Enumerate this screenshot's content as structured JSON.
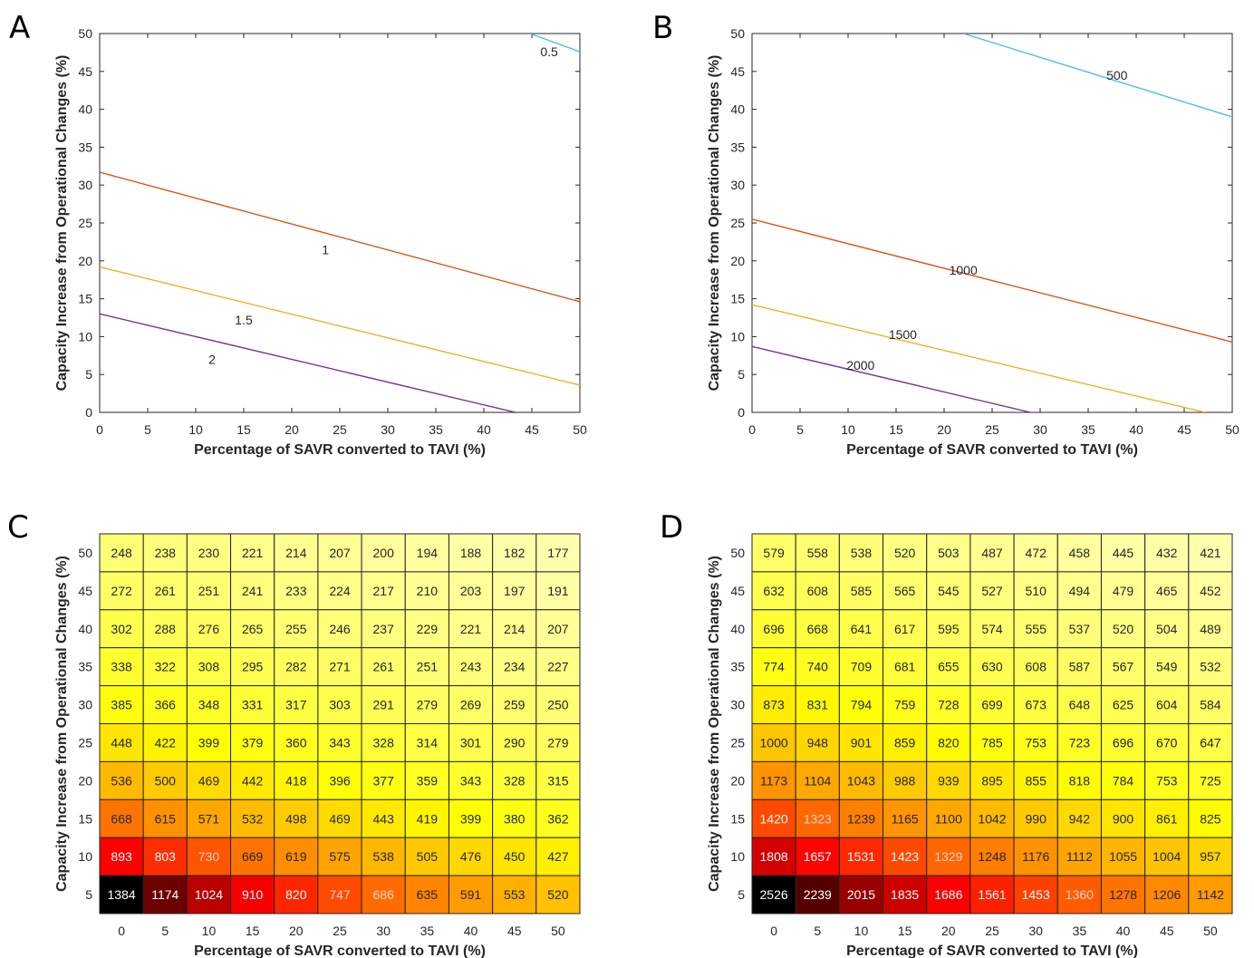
{
  "figure": {
    "panels": [
      {
        "id": "A",
        "letter": "A"
      },
      {
        "id": "B",
        "letter": "B"
      },
      {
        "id": "C",
        "letter": "C"
      },
      {
        "id": "D",
        "letter": "D"
      }
    ]
  },
  "chart_data": [
    {
      "panel": "A",
      "type": "line",
      "xlabel": "Percentage of SAVR converted to TAVI (%)",
      "ylabel": "Capacity Increase from Operational Changes (%)",
      "xlim": [
        0,
        50
      ],
      "ylim": [
        0,
        50
      ],
      "xticks": [
        0,
        5,
        10,
        15,
        20,
        25,
        30,
        35,
        40,
        45,
        50
      ],
      "yticks": [
        0,
        5,
        10,
        15,
        20,
        25,
        30,
        35,
        40,
        45,
        50
      ],
      "grid": false,
      "series": [
        {
          "contour_label": "0.5",
          "color": "#4dbeee",
          "points": [
            [
              44.8,
              50
            ],
            [
              50,
              47.6
            ]
          ],
          "label_at": [
            46.8,
            47.6
          ]
        },
        {
          "contour_label": "1",
          "color": "#d95319",
          "points": [
            [
              0,
              31.7
            ],
            [
              50,
              14.6
            ]
          ],
          "label_at": [
            23.5,
            21.5
          ]
        },
        {
          "contour_label": "1.5",
          "color": "#edb120",
          "points": [
            [
              0,
              19.2
            ],
            [
              50,
              3.6
            ]
          ],
          "label_at": [
            15.0,
            12.2
          ]
        },
        {
          "contour_label": "2",
          "color": "#7e2f8e",
          "points": [
            [
              0,
              13.0
            ],
            [
              43.3,
              0
            ]
          ],
          "label_at": [
            11.7,
            7.0
          ]
        }
      ]
    },
    {
      "panel": "B",
      "type": "line",
      "xlabel": "Percentage of SAVR converted to TAVI (%)",
      "ylabel": "Capacity Increase from Operational Changes (%)",
      "xlim": [
        0,
        50
      ],
      "ylim": [
        0,
        50
      ],
      "xticks": [
        0,
        5,
        10,
        15,
        20,
        25,
        30,
        35,
        40,
        45,
        50
      ],
      "yticks": [
        0,
        5,
        10,
        15,
        20,
        25,
        30,
        35,
        40,
        45,
        50
      ],
      "grid": false,
      "series": [
        {
          "contour_label": "500",
          "color": "#4dbeee",
          "points": [
            [
              22,
              50
            ],
            [
              50,
              39.0
            ]
          ],
          "label_at": [
            38.0,
            44.5
          ]
        },
        {
          "contour_label": "1000",
          "color": "#d95319",
          "points": [
            [
              0,
              25.5
            ],
            [
              50,
              9.3
            ]
          ],
          "label_at": [
            22.0,
            18.8
          ]
        },
        {
          "contour_label": "1500",
          "color": "#edb120",
          "points": [
            [
              0,
              14.2
            ],
            [
              47.2,
              0
            ]
          ],
          "label_at": [
            15.7,
            10.3
          ]
        },
        {
          "contour_label": "2000",
          "color": "#7e2f8e",
          "points": [
            [
              0,
              8.7
            ],
            [
              29.0,
              0
            ]
          ],
          "label_at": [
            11.3,
            6.2
          ]
        }
      ]
    },
    {
      "panel": "C",
      "type": "heatmap",
      "xlabel": "Percentage of SAVR converted to TAVI (%)",
      "ylabel": "Capacity Increase from Operational Changes (%)",
      "x": [
        "0",
        "5",
        "10",
        "15",
        "20",
        "25",
        "30",
        "35",
        "40",
        "45",
        "50"
      ],
      "y": [
        "50",
        "45",
        "40",
        "35",
        "30",
        "25",
        "20",
        "15",
        "10",
        "5"
      ],
      "values": [
        [
          248,
          238,
          230,
          221,
          214,
          207,
          200,
          194,
          188,
          182,
          177
        ],
        [
          272,
          261,
          251,
          241,
          233,
          224,
          217,
          210,
          203,
          197,
          191
        ],
        [
          302,
          288,
          276,
          265,
          255,
          246,
          237,
          229,
          221,
          214,
          207
        ],
        [
          338,
          322,
          308,
          295,
          282,
          271,
          261,
          251,
          243,
          234,
          227
        ],
        [
          385,
          366,
          348,
          331,
          317,
          303,
          291,
          279,
          269,
          259,
          250
        ],
        [
          448,
          422,
          399,
          379,
          360,
          343,
          328,
          314,
          301,
          290,
          279
        ],
        [
          536,
          500,
          469,
          442,
          418,
          396,
          377,
          359,
          343,
          328,
          315
        ],
        [
          668,
          615,
          571,
          532,
          498,
          469,
          443,
          419,
          399,
          380,
          362
        ],
        [
          893,
          803,
          730,
          669,
          619,
          575,
          538,
          505,
          476,
          450,
          427
        ],
        [
          1384,
          1174,
          1024,
          910,
          820,
          747,
          686,
          635,
          591,
          553,
          520
        ]
      ],
      "colormap": "hot (reversed)"
    },
    {
      "panel": "D",
      "type": "heatmap",
      "xlabel": "Percentage of SAVR converted to TAVI (%)",
      "ylabel": "Capacity Increase from Operational Changes (%)",
      "x": [
        "0",
        "5",
        "10",
        "15",
        "20",
        "25",
        "30",
        "35",
        "40",
        "45",
        "50"
      ],
      "y": [
        "50",
        "45",
        "40",
        "35",
        "30",
        "25",
        "20",
        "15",
        "10",
        "5"
      ],
      "values": [
        [
          579,
          558,
          538,
          520,
          503,
          487,
          472,
          458,
          445,
          432,
          421
        ],
        [
          632,
          608,
          585,
          565,
          545,
          527,
          510,
          494,
          479,
          465,
          452
        ],
        [
          696,
          668,
          641,
          617,
          595,
          574,
          555,
          537,
          520,
          504,
          489
        ],
        [
          774,
          740,
          709,
          681,
          655,
          630,
          608,
          587,
          567,
          549,
          532
        ],
        [
          873,
          831,
          794,
          759,
          728,
          699,
          673,
          648,
          625,
          604,
          584
        ],
        [
          1000,
          948,
          901,
          859,
          820,
          785,
          753,
          723,
          696,
          670,
          647
        ],
        [
          1173,
          1104,
          1043,
          988,
          939,
          895,
          855,
          818,
          784,
          753,
          725
        ],
        [
          1420,
          1323,
          1239,
          1165,
          1100,
          1042,
          990,
          942,
          900,
          861,
          825
        ],
        [
          1808,
          1657,
          1531,
          1423,
          1329,
          1248,
          1176,
          1112,
          1055,
          1004,
          957
        ],
        [
          2526,
          2239,
          2015,
          1835,
          1686,
          1561,
          1453,
          1360,
          1278,
          1206,
          1142
        ]
      ],
      "colormap": "hot (reversed)"
    }
  ]
}
